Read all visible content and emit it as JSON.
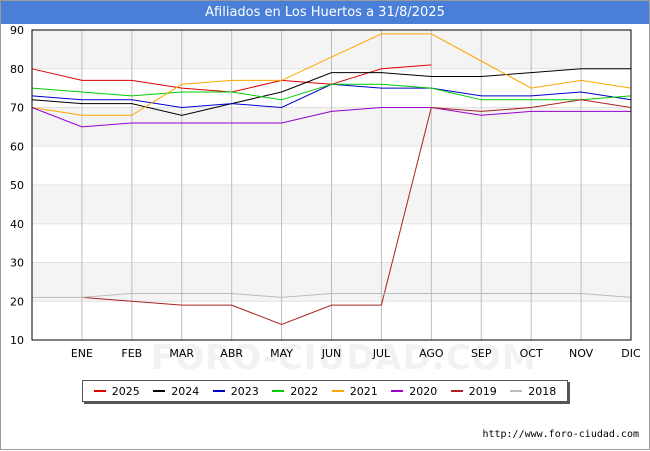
{
  "title": "Afiliados en Los Huertos a 31/8/2025",
  "watermark": "FORO-CIUDAD.COM",
  "source": "http://www.foro-ciudad.com",
  "colors": {
    "title_bg": "#4a7fd8",
    "band": "#f4f4f4",
    "grid": "#bdbdbd"
  },
  "chart_data": {
    "type": "line",
    "title": "Afiliados en Los Huertos a 31/8/2025",
    "x": [
      "",
      "ENE",
      "FEB",
      "MAR",
      "ABR",
      "MAY",
      "JUN",
      "JUL",
      "AGO",
      "SEP",
      "OCT",
      "NOV",
      "DIC"
    ],
    "ylim": [
      10,
      90
    ],
    "yticks": [
      10,
      20,
      30,
      40,
      50,
      60,
      70,
      80,
      90
    ],
    "grid": true,
    "legend_position": "bottom",
    "series": [
      {
        "name": "2025",
        "color": "#e00000",
        "values": [
          80,
          77,
          77,
          75,
          74,
          77,
          76,
          80,
          81,
          null,
          null,
          null,
          null
        ]
      },
      {
        "name": "2024",
        "color": "#000000",
        "values": [
          72,
          71,
          71,
          68,
          71,
          74,
          79,
          79,
          78,
          78,
          79,
          80,
          80
        ]
      },
      {
        "name": "2023",
        "color": "#0000cc",
        "values": [
          73,
          72,
          72,
          70,
          71,
          70,
          76,
          75,
          75,
          73,
          73,
          74,
          72
        ]
      },
      {
        "name": "2022",
        "color": "#00cc00",
        "values": [
          75,
          74,
          73,
          74,
          74,
          72,
          76,
          76,
          75,
          72,
          72,
          72,
          73
        ]
      },
      {
        "name": "2021",
        "color": "#ffa500",
        "values": [
          70,
          68,
          68,
          76,
          77,
          77,
          83,
          89,
          89,
          82,
          75,
          77,
          75
        ]
      },
      {
        "name": "2020",
        "color": "#9900cc",
        "values": [
          70,
          65,
          66,
          66,
          66,
          66,
          69,
          70,
          70,
          68,
          69,
          69,
          69
        ]
      },
      {
        "name": "2019",
        "color": "#aa2222",
        "values": [
          null,
          21,
          20,
          19,
          19,
          14,
          19,
          19,
          70,
          69,
          70,
          72,
          70
        ]
      },
      {
        "name": "2018",
        "color": "#bbbbbb",
        "values": [
          21,
          21,
          22,
          22,
          22,
          21,
          22,
          22,
          22,
          22,
          22,
          22,
          21
        ]
      }
    ]
  }
}
